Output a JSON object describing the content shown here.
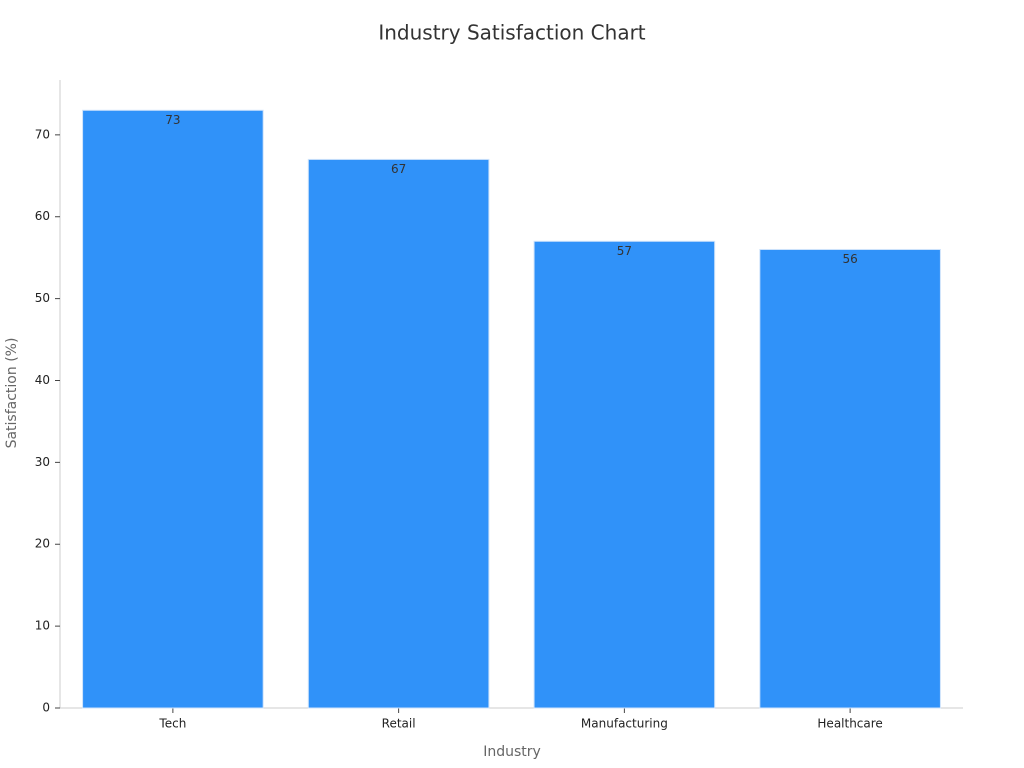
{
  "chart_data": {
    "type": "bar",
    "title": "Industry Satisfaction Chart",
    "x_label": "Industry",
    "y_label": "Satisfaction (%)",
    "categories": [
      "Tech",
      "Retail",
      "Manufacturing",
      "Healthcare"
    ],
    "values": [
      73,
      67,
      57,
      56
    ],
    "color": "#3092f9",
    "ylim": [
      0,
      76.7
    ],
    "yticks": [
      0,
      10,
      20,
      30,
      40,
      50,
      60,
      70
    ],
    "grid": false
  }
}
